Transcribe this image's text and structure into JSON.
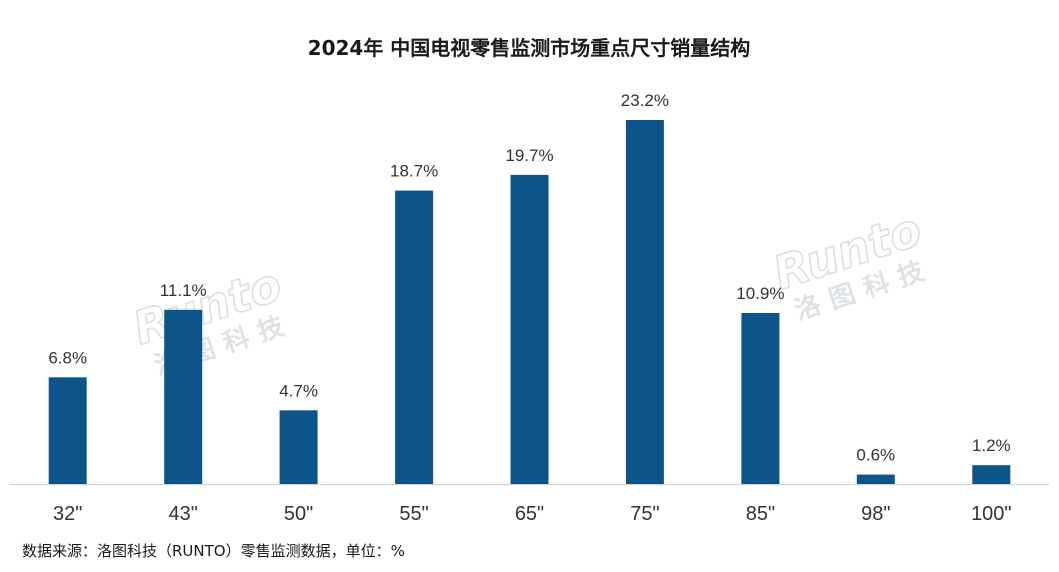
{
  "chart_data": {
    "type": "bar",
    "title": "2024年 中国电视零售监测市场重点尺寸销量结构",
    "categories": [
      "32\"",
      "43\"",
      "50\"",
      "55\"",
      "65\"",
      "75\"",
      "85\"",
      "98\"",
      "100\""
    ],
    "values": [
      6.8,
      11.1,
      4.7,
      18.7,
      19.7,
      23.2,
      10.9,
      0.6,
      1.2
    ],
    "value_labels": [
      "6.8%",
      "11.1%",
      "4.7%",
      "18.7%",
      "19.7%",
      "23.2%",
      "10.9%",
      "0.6%",
      "1.2%"
    ],
    "xlabel": "",
    "ylabel": "",
    "ylim": [
      0,
      23.2
    ],
    "unit": "%",
    "grid": false,
    "legend": "none",
    "bar_color": "#0d5488",
    "source": "数据来源：洛图科技（RUNTO）零售监测数据，单位：%"
  },
  "watermark": {
    "latin": "Runto",
    "cjk": "洛图科技"
  }
}
